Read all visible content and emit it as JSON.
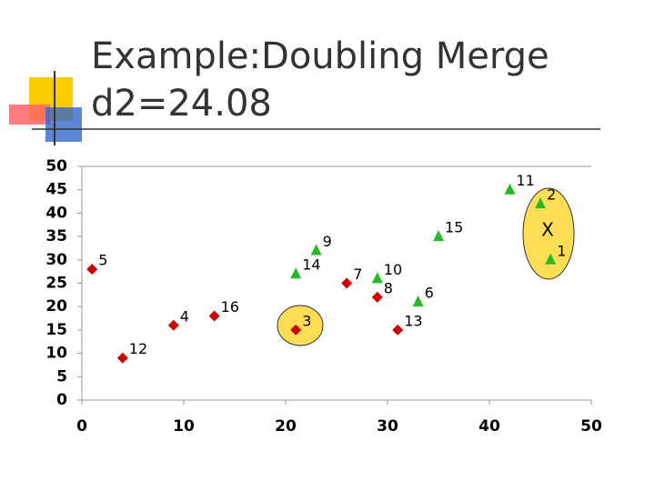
{
  "chart_data": {
    "type": "scatter",
    "title": [
      "Example:Doubling Merge",
      "d2=24.08"
    ],
    "annotation": "X",
    "xlim": [
      0,
      50
    ],
    "xticks": [
      0,
      10,
      20,
      30,
      40,
      50
    ],
    "ylim": [
      0,
      50
    ],
    "yticks": [
      0,
      5,
      10,
      15,
      20,
      25,
      30,
      35,
      40,
      45,
      50
    ],
    "series": [
      {
        "color": "#cc0000",
        "marker": "diamond",
        "labels": [
          "5",
          "12",
          "4",
          "16",
          "3",
          "7",
          "8",
          "13"
        ],
        "x": [
          1,
          4,
          9,
          13,
          21,
          26,
          29,
          31
        ],
        "values": [
          28,
          9,
          16,
          18,
          15,
          25,
          22,
          15
        ]
      },
      {
        "color": "#22bb22",
        "marker": "triangle",
        "labels": [
          "14",
          "9",
          "10",
          "6",
          "15",
          "11",
          "2",
          "1"
        ],
        "x": [
          21,
          23,
          29,
          33,
          35,
          42,
          45,
          46
        ],
        "values": [
          27,
          32,
          26,
          21,
          35,
          45,
          42,
          30
        ]
      }
    ]
  }
}
